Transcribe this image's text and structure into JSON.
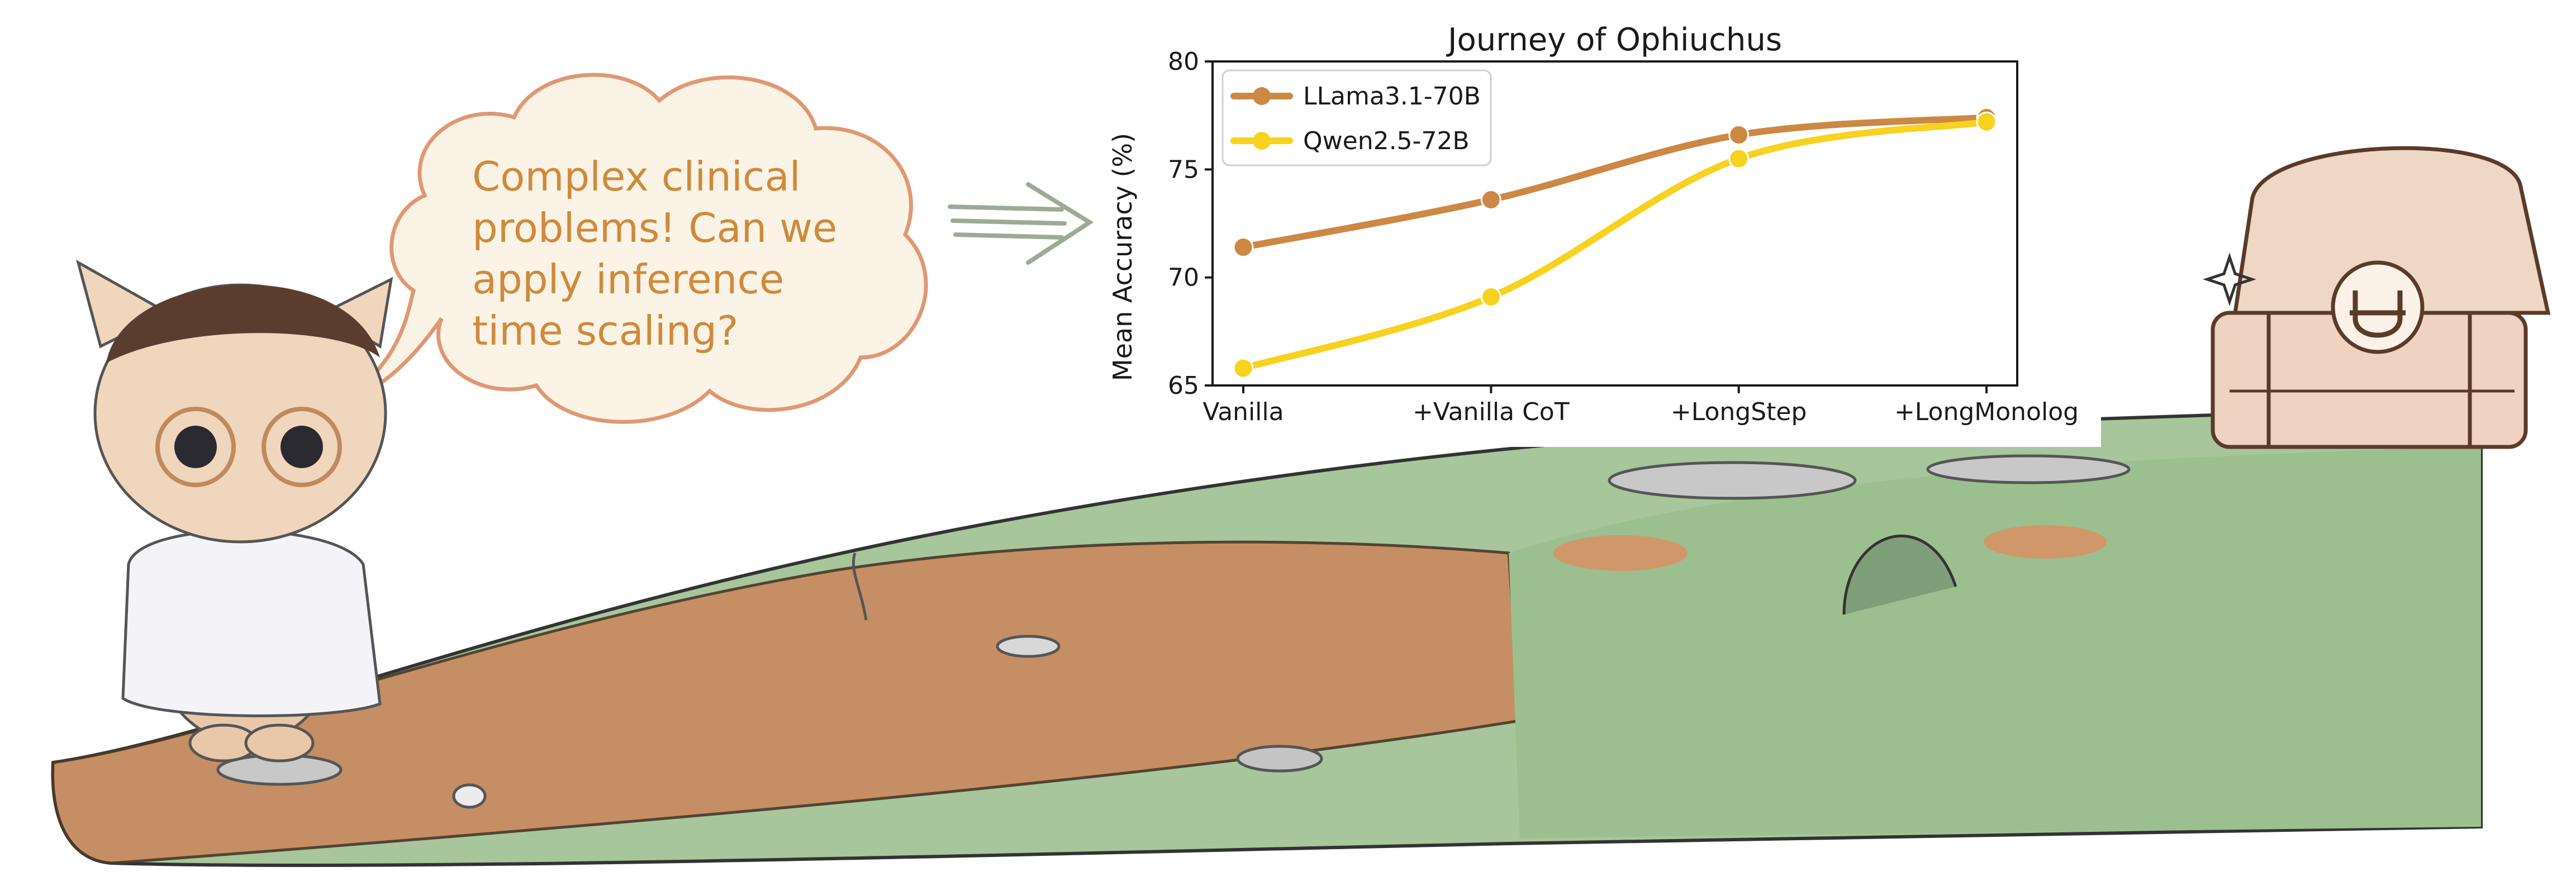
{
  "speech_bubble": {
    "lines": [
      "Complex clinical",
      "problems! Can we",
      "apply inference",
      "time scaling?"
    ]
  },
  "colors": {
    "llama": "#cd8844",
    "qwen": "#f7d21f",
    "speech_text": "#d08a3c",
    "bark": "#c9885f",
    "moss": "#9fbf94"
  },
  "icons": {
    "character": "cat-doctor-icon",
    "treasure": "treasure-chest-icon",
    "symbol": "ophiuchus-symbol-icon",
    "sparkle": "sparkle-icon",
    "arrow": "right-arrow-icon"
  },
  "chart_data": {
    "type": "line",
    "title": "Journey of Ophiuchus",
    "xlabel": "",
    "ylabel": "Mean Accuracy (%)",
    "categories": [
      "Vanilla",
      "+Vanilla CoT",
      "+LongStep",
      "+LongMonolog"
    ],
    "ylim": [
      65,
      80
    ],
    "yticks": [
      65,
      70,
      75,
      80
    ],
    "grid": false,
    "legend_position": "upper-left",
    "series": [
      {
        "name": "LLama3.1-70B",
        "values": [
          71.4,
          73.6,
          76.6,
          77.4
        ],
        "color": "#cd8844"
      },
      {
        "name": "Qwen2.5-72B",
        "values": [
          65.8,
          69.1,
          75.5,
          77.2
        ],
        "color": "#f7d21f"
      }
    ]
  }
}
